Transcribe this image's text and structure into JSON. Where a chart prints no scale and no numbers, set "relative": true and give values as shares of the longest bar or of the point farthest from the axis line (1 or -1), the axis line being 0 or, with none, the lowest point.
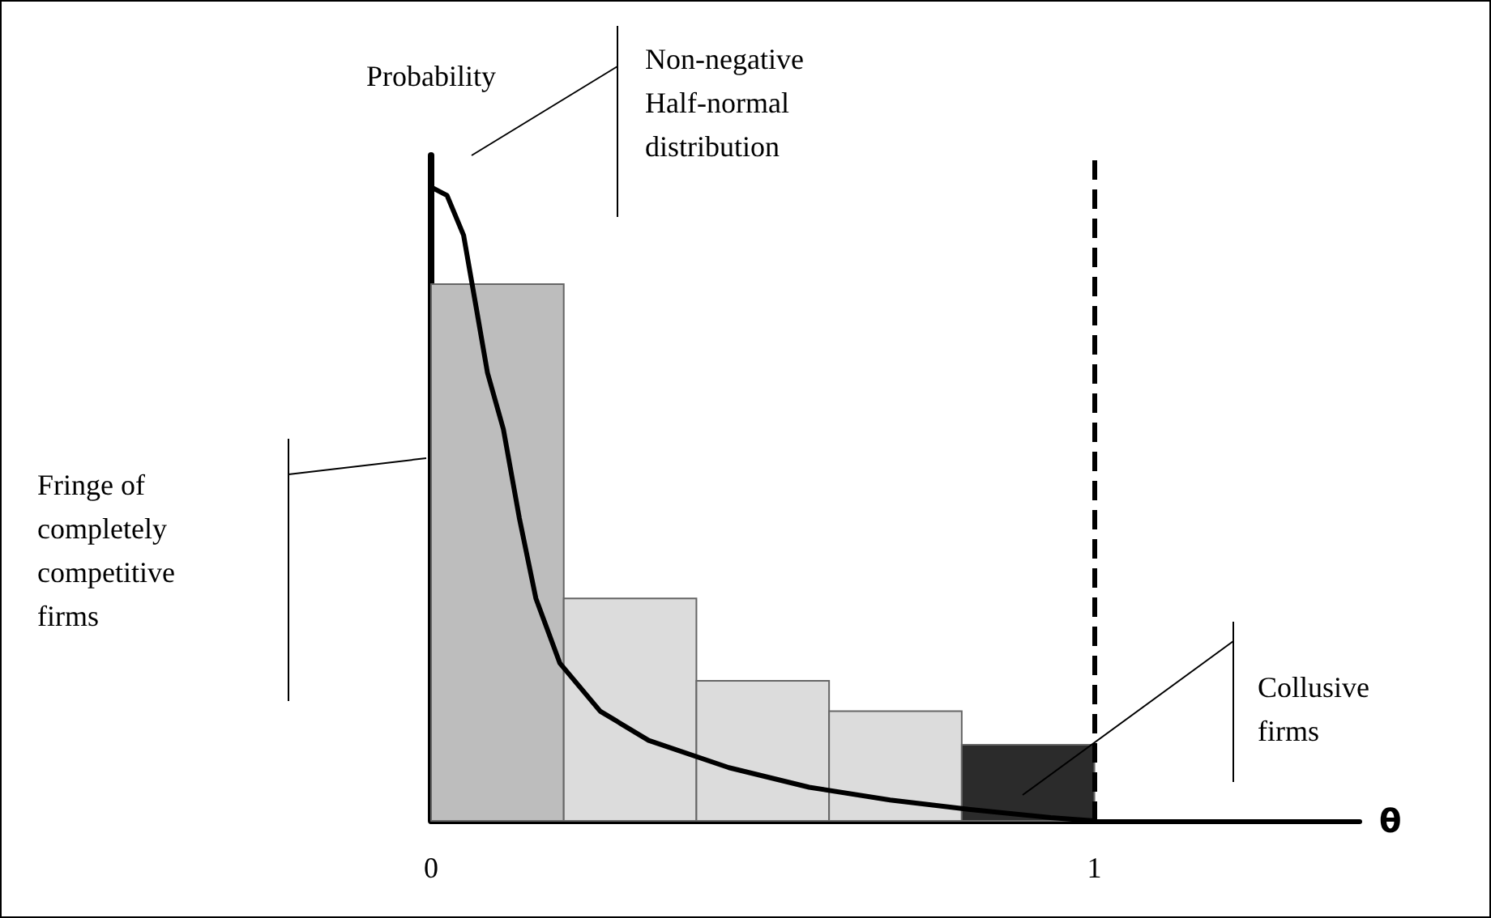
{
  "chart_data": {
    "type": "histogram",
    "relative": true,
    "xlabel": "θ",
    "ylabel": "Probability",
    "xlim": [
      0,
      1.4
    ],
    "xticks": [
      0,
      1
    ],
    "tick_labels": "x",
    "grid": false,
    "bins": [
      0,
      0.2,
      0.4,
      0.6,
      0.8,
      1
    ],
    "series": [
      {
        "values": [
          0.847,
          0.351,
          0.221,
          0.173,
          0.12
        ],
        "colors": [
          "#bdbdbd",
          "#dcdcdc",
          "#dcdcdc",
          "#dcdcdc",
          "#2b2b2b"
        ]
      },
      {
        "type": "line",
        "color": "#000000",
        "marker": "none",
        "line_style": "solid",
        "x": [
          0,
          0.024,
          0.049,
          0.068,
          0.085,
          0.109,
          0.133,
          0.158,
          0.194,
          0.255,
          0.328,
          0.449,
          0.57,
          0.692,
          0.813,
          0.934,
          1
        ],
        "values": [
          1,
          0.987,
          0.924,
          0.81,
          0.707,
          0.618,
          0.478,
          0.351,
          0.249,
          0.173,
          0.127,
          0.084,
          0.053,
          0.033,
          0.018,
          0.005,
          0
        ]
      }
    ],
    "ref_lines": [
      {
        "axis": "x",
        "value": 1,
        "color": "#000000",
        "line_style": "dashed"
      }
    ],
    "annotations": [
      "Non-negative Half-normal distribution",
      "Fringe of completely competitive firms",
      "Collusive firms"
    ]
  }
}
